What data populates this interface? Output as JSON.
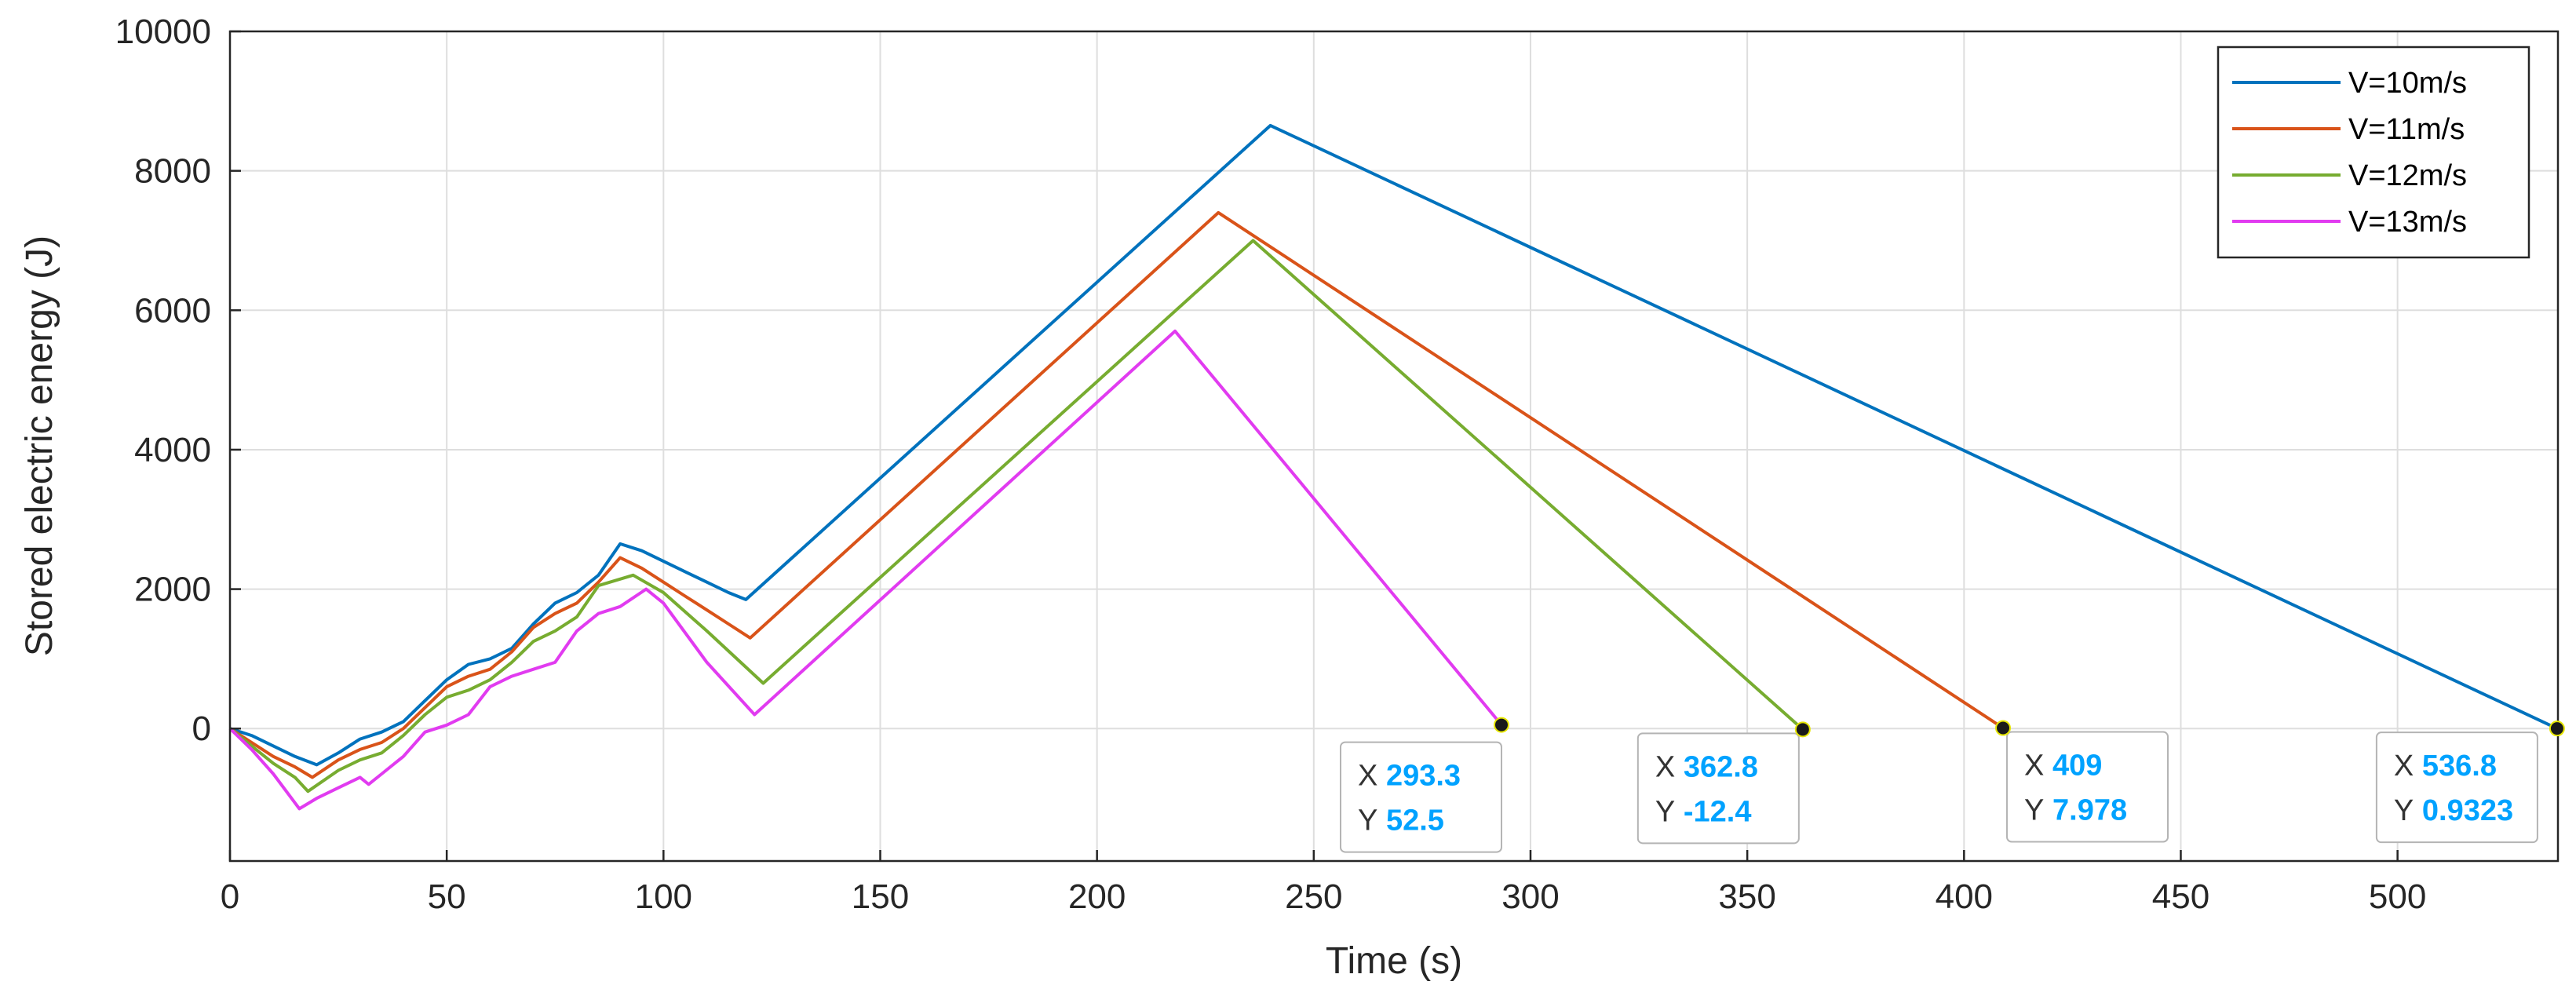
{
  "chart_data": {
    "type": "line",
    "xlabel": "Time (s)",
    "ylabel": "Stored electric energy (J)",
    "xlim": [
      0,
      537
    ],
    "ylim": [
      -1900,
      10000
    ],
    "xticks": [
      0,
      50,
      100,
      150,
      200,
      250,
      300,
      350,
      400,
      450,
      500
    ],
    "yticks": [
      0,
      2000,
      4000,
      6000,
      8000,
      10000
    ],
    "grid": true,
    "legend_position": "top-right",
    "series": [
      {
        "name": "V=10m/s",
        "color": "#0072bd",
        "points": [
          [
            0,
            0
          ],
          [
            5,
            -100
          ],
          [
            10,
            -250
          ],
          [
            15,
            -400
          ],
          [
            20,
            -520
          ],
          [
            25,
            -350
          ],
          [
            30,
            -150
          ],
          [
            35,
            -50
          ],
          [
            40,
            100
          ],
          [
            45,
            400
          ],
          [
            50,
            700
          ],
          [
            55,
            920
          ],
          [
            60,
            1000
          ],
          [
            65,
            1150
          ],
          [
            70,
            1500
          ],
          [
            75,
            1800
          ],
          [
            80,
            1950
          ],
          [
            85,
            2200
          ],
          [
            90,
            2650
          ],
          [
            95,
            2550
          ],
          [
            100,
            2400
          ],
          [
            105,
            2250
          ],
          [
            110,
            2100
          ],
          [
            115,
            1950
          ],
          [
            119,
            1850
          ],
          [
            240,
            8650
          ],
          [
            536.8,
            0.9323
          ]
        ]
      },
      {
        "name": "V=11m/s",
        "color": "#d95319",
        "points": [
          [
            0,
            0
          ],
          [
            5,
            -200
          ],
          [
            10,
            -400
          ],
          [
            15,
            -550
          ],
          [
            19,
            -700
          ],
          [
            25,
            -450
          ],
          [
            30,
            -300
          ],
          [
            35,
            -200
          ],
          [
            40,
            0
          ],
          [
            45,
            300
          ],
          [
            50,
            600
          ],
          [
            55,
            750
          ],
          [
            60,
            850
          ],
          [
            65,
            1100
          ],
          [
            70,
            1450
          ],
          [
            75,
            1650
          ],
          [
            80,
            1800
          ],
          [
            85,
            2100
          ],
          [
            90,
            2450
          ],
          [
            95,
            2300
          ],
          [
            100,
            2100
          ],
          [
            105,
            1900
          ],
          [
            110,
            1700
          ],
          [
            115,
            1500
          ],
          [
            120,
            1300
          ],
          [
            228,
            7400
          ],
          [
            409,
            7.978
          ]
        ]
      },
      {
        "name": "V=12m/s",
        "color": "#77ac30",
        "points": [
          [
            0,
            0
          ],
          [
            5,
            -250
          ],
          [
            10,
            -500
          ],
          [
            15,
            -700
          ],
          [
            18,
            -900
          ],
          [
            25,
            -600
          ],
          [
            30,
            -450
          ],
          [
            35,
            -350
          ],
          [
            40,
            -100
          ],
          [
            45,
            200
          ],
          [
            50,
            450
          ],
          [
            55,
            550
          ],
          [
            60,
            700
          ],
          [
            65,
            950
          ],
          [
            70,
            1250
          ],
          [
            75,
            1400
          ],
          [
            80,
            1600
          ],
          [
            85,
            2050
          ],
          [
            93,
            2200
          ],
          [
            100,
            1950
          ],
          [
            110,
            1400
          ],
          [
            123,
            650
          ],
          [
            236,
            7000
          ],
          [
            362.8,
            -12.4
          ]
        ]
      },
      {
        "name": "V=13m/s",
        "color": "#e13bf0",
        "points": [
          [
            0,
            0
          ],
          [
            5,
            -300
          ],
          [
            10,
            -650
          ],
          [
            16,
            -1150
          ],
          [
            20,
            -1000
          ],
          [
            25,
            -850
          ],
          [
            30,
            -700
          ],
          [
            32,
            -800
          ],
          [
            35,
            -650
          ],
          [
            40,
            -400
          ],
          [
            45,
            -50
          ],
          [
            50,
            50
          ],
          [
            55,
            200
          ],
          [
            60,
            600
          ],
          [
            65,
            750
          ],
          [
            70,
            850
          ],
          [
            75,
            950
          ],
          [
            80,
            1400
          ],
          [
            85,
            1650
          ],
          [
            90,
            1750
          ],
          [
            96,
            2000
          ],
          [
            100,
            1800
          ],
          [
            110,
            950
          ],
          [
            121,
            200
          ],
          [
            218,
            5700
          ],
          [
            293.3,
            52.5
          ]
        ]
      }
    ],
    "datatips": [
      {
        "x_key": "X",
        "x_value": "293.3",
        "y_key": "Y",
        "y_value": "52.5",
        "x": 293.3,
        "y": 52.5
      },
      {
        "x_key": "X",
        "x_value": "362.8",
        "y_key": "Y",
        "y_value": "-12.4",
        "x": 362.8,
        "y": -12.4
      },
      {
        "x_key": "X",
        "x_value": "409",
        "y_key": "Y",
        "y_value": "7.978",
        "x": 409,
        "y": 7.978
      },
      {
        "x_key": "X",
        "x_value": "536.8",
        "y_key": "Y",
        "y_value": "0.9323",
        "x": 536.8,
        "y": 0.9323
      }
    ]
  }
}
